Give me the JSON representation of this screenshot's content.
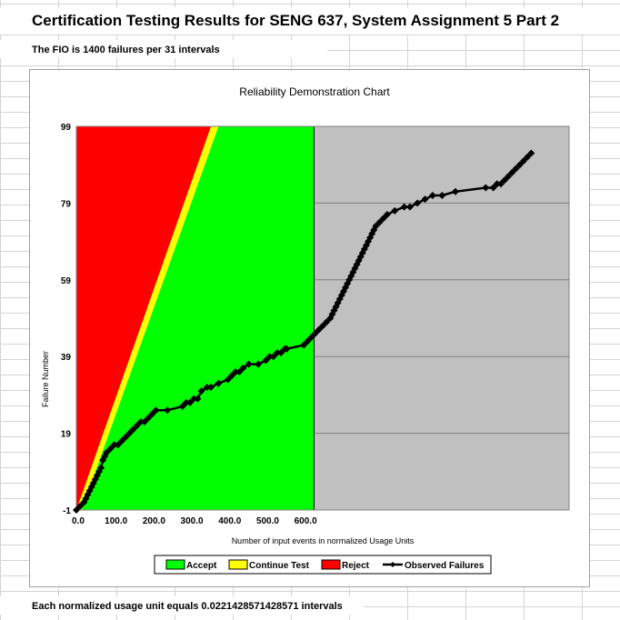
{
  "page": {
    "title": "Certification Testing Results for SENG 637, System Assignment 5 Part 2",
    "fio_note": "The FIO is 1400 failures per 31 intervals",
    "footer_note": "Each normalized usage unit equals 0.0221428571428571 intervals"
  },
  "colors": {
    "accept": "#00ff00",
    "continue": "#ffff00",
    "reject": "#ff0000",
    "region_outside": "#c0c0c0",
    "observed": "#000000"
  },
  "chart_data": {
    "type": "line",
    "title": "Reliability Demonstration Chart",
    "xlabel": "Number of input events in normalized Usage Units",
    "ylabel": "Failure Number",
    "xlim": [
      0,
      1300
    ],
    "ylim": [
      -1,
      99
    ],
    "x_tick_labels": [
      "0.0",
      "100.0",
      "200.0",
      "300.0",
      "400.0",
      "500.0",
      "600.0"
    ],
    "y_tick_labels": [
      "-1",
      "19",
      "39",
      "59",
      "79",
      "99"
    ],
    "y_ticks": [
      -1,
      19,
      39,
      59,
      79,
      99
    ],
    "grid": "horizontal",
    "legend_position": "bottom",
    "legend": [
      "Accept",
      "Continue Test",
      "Reject",
      "Observed Failures"
    ],
    "regions": {
      "reject_boundary": [
        [
          0,
          -1
        ],
        [
          355,
          99
        ]
      ],
      "accept_boundary": [
        [
          14,
          -1
        ],
        [
          375,
          99
        ]
      ],
      "test_end_x": 627
    },
    "series": [
      {
        "name": "Observed Failures",
        "x": [
          0,
          10,
          20,
          25,
          30,
          35,
          40,
          45,
          50,
          55,
          60,
          65,
          70,
          75,
          80,
          90,
          100,
          110,
          120,
          130,
          140,
          150,
          160,
          170,
          180,
          190,
          200,
          210,
          240,
          280,
          290,
          300,
          310,
          320,
          330,
          345,
          355,
          375,
          400,
          410,
          420,
          430,
          440,
          455,
          480,
          500,
          510,
          520,
          530,
          540,
          550,
          555,
          600,
          610,
          620,
          630,
          640,
          650,
          660,
          670,
          675,
          680,
          685,
          690,
          695,
          700,
          705,
          710,
          715,
          720,
          725,
          730,
          735,
          740,
          745,
          750,
          755,
          760,
          765,
          770,
          775,
          780,
          785,
          790,
          800,
          810,
          820,
          840,
          865,
          880,
          900,
          920,
          940,
          965,
          1000,
          1080,
          1100,
          1110,
          1120,
          1130,
          1140,
          1150,
          1160,
          1170,
          1180,
          1190,
          1200
        ],
        "y": [
          -1,
          0,
          1,
          2,
          3,
          4,
          5,
          6,
          7,
          8,
          9,
          10,
          12,
          13,
          14,
          15,
          16,
          16,
          17,
          18,
          19,
          20,
          21,
          22,
          22,
          23,
          24,
          25,
          25,
          26,
          27,
          27,
          28,
          28,
          30,
          31,
          31,
          32,
          33,
          34,
          35,
          35,
          36,
          37,
          37,
          38,
          39,
          39,
          40,
          40,
          41,
          41,
          42,
          43,
          44,
          45,
          46,
          47,
          48,
          49,
          50,
          51,
          52,
          53,
          54,
          55,
          56,
          57,
          58,
          59,
          60,
          61,
          62,
          63,
          64,
          65,
          66,
          67,
          68,
          69,
          70,
          71,
          72,
          73,
          74,
          75,
          76,
          77,
          78,
          78,
          79,
          80,
          81,
          81,
          82,
          83,
          83,
          84,
          84,
          85,
          86,
          87,
          88,
          89,
          90,
          91,
          92
        ]
      }
    ]
  }
}
